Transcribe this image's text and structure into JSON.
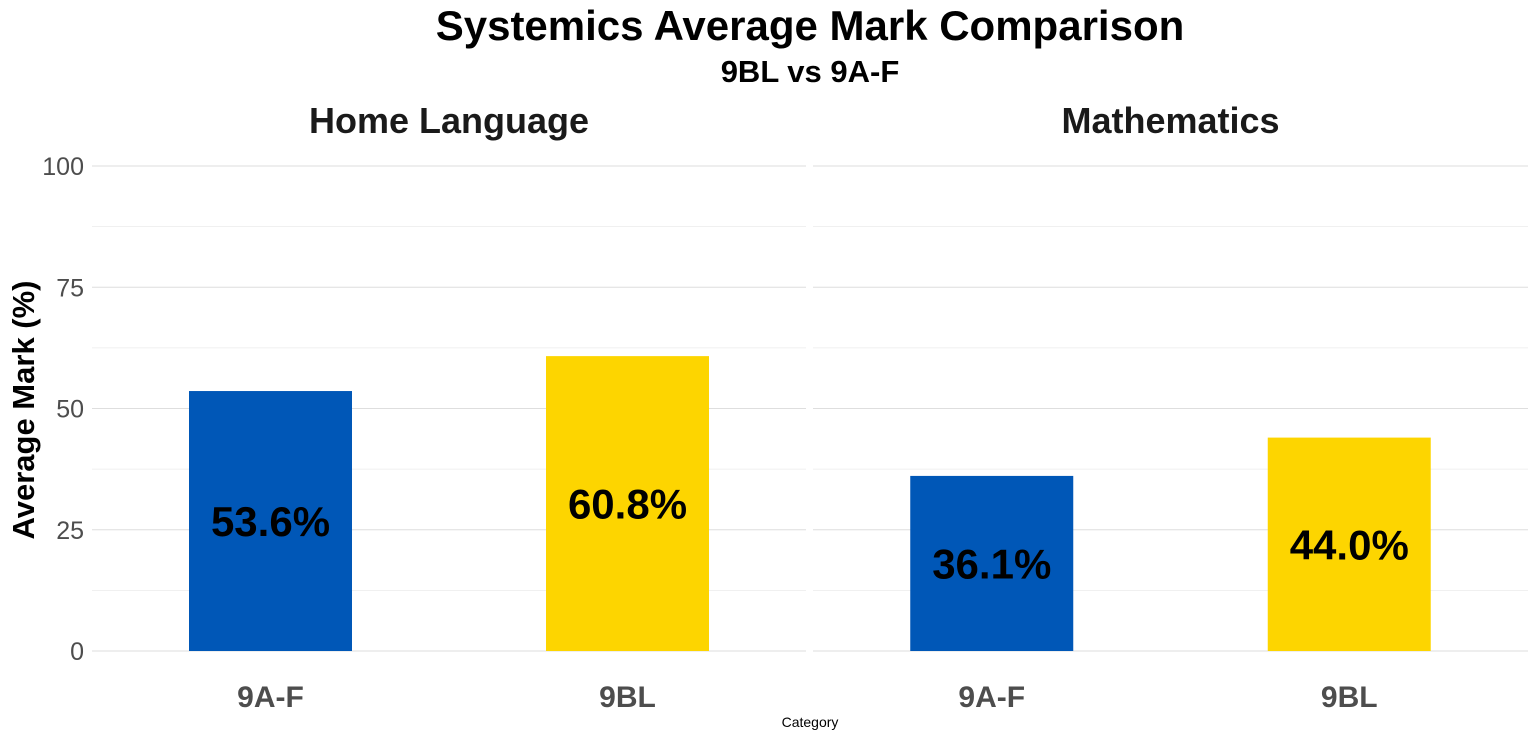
{
  "chart_data": {
    "type": "bar",
    "title": "Systemics Average Mark Comparison",
    "subtitle": "9BL vs 9A-F",
    "xlabel": "Category",
    "ylabel": "Average Mark (%)",
    "ylim": [
      0,
      100
    ],
    "yticks": [
      "0",
      "25",
      "50",
      "75",
      "100"
    ],
    "grid": true,
    "legend": "none",
    "categories": [
      "9A-F",
      "9BL"
    ],
    "colors": {
      "9A-F": "#0057b7",
      "9BL": "#fdd500"
    },
    "facets": [
      {
        "name": "Home Language",
        "values": [
          53.6,
          60.8
        ],
        "labels": [
          "53.6%",
          "60.8%"
        ]
      },
      {
        "name": "Mathematics",
        "values": [
          36.1,
          44.0
        ],
        "labels": [
          "36.1%",
          "44.0%"
        ]
      }
    ]
  }
}
